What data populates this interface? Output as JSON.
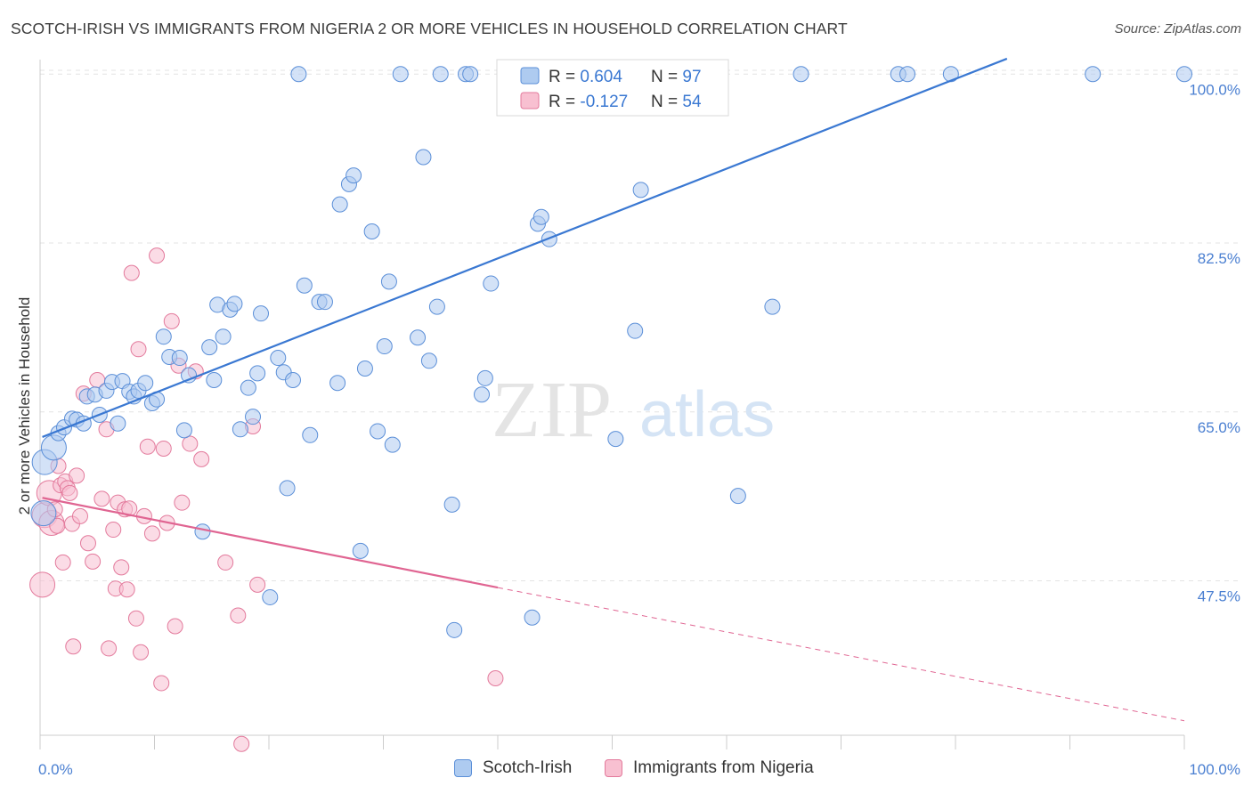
{
  "header": {
    "title": "SCOTCH-IRISH VS IMMIGRANTS FROM NIGERIA 2 OR MORE VEHICLES IN HOUSEHOLD CORRELATION CHART",
    "source": "Source: ZipAtlas.com"
  },
  "watermark": {
    "zip": "ZIP",
    "atlas": "atlas"
  },
  "colors": {
    "blue_fill": "#aecbf0",
    "blue_stroke": "#5b8fd8",
    "blue_line": "#3a78d2",
    "pink_fill": "#f8c0d1",
    "pink_stroke": "#e37a9c",
    "pink_line": "#e06592",
    "axis_text": "#4a7fd1",
    "grid": "#e3e3e3"
  },
  "legend_top": {
    "rows": [
      {
        "r_label": "R = ",
        "r_value": "0.604",
        "n_label": "N = ",
        "n_value": "97"
      },
      {
        "r_label": "R = ",
        "r_value": "-0.127",
        "n_label": "N = ",
        "n_value": "54"
      }
    ]
  },
  "legend_bottom": {
    "items": [
      {
        "label": "Scotch-Irish"
      },
      {
        "label": "Immigrants from Nigeria"
      }
    ]
  },
  "chart_data": {
    "type": "scatter",
    "title": "SCOTCH-IRISH VS IMMIGRANTS FROM NIGERIA 2 OR MORE VEHICLES IN HOUSEHOLD CORRELATION CHART",
    "xlabel": "",
    "ylabel": "2 or more Vehicles in Household",
    "xlim": [
      0,
      100
    ],
    "ylim": [
      31.5,
      101.5
    ],
    "x_tick_labels": [
      "0.0%",
      "100.0%"
    ],
    "y_ticks": [
      47.5,
      65.0,
      82.5,
      100.0
    ],
    "y_tick_labels": [
      "47.5%",
      "65.0%",
      "82.5%",
      "100.0%"
    ],
    "grid": true,
    "legend_placement": "top-center",
    "series": [
      {
        "name": "Scotch-Irish",
        "R": 0.604,
        "N": 97,
        "trend": {
          "x": [
            0.2,
            84.5
          ],
          "y": [
            62.4,
            101.6
          ]
        },
        "points": [
          [
            0.3,
            54.5
          ],
          [
            0.4,
            59.8
          ],
          [
            1.2,
            61.3
          ],
          [
            1.6,
            62.8
          ],
          [
            2.1,
            63.4
          ],
          [
            2.8,
            64.3
          ],
          [
            3.2,
            64.2
          ],
          [
            3.8,
            63.8
          ],
          [
            4.1,
            66.6
          ],
          [
            4.8,
            66.8
          ],
          [
            5.2,
            64.7
          ],
          [
            5.8,
            67.2
          ],
          [
            6.3,
            68.1
          ],
          [
            6.8,
            63.8
          ],
          [
            7.2,
            68.2
          ],
          [
            7.8,
            67.1
          ],
          [
            8.2,
            66.6
          ],
          [
            8.6,
            67.2
          ],
          [
            9.2,
            68.0
          ],
          [
            9.8,
            65.9
          ],
          [
            10.2,
            66.3
          ],
          [
            10.8,
            72.8
          ],
          [
            11.3,
            70.7
          ],
          [
            12.2,
            70.6
          ],
          [
            12.6,
            63.1
          ],
          [
            13.0,
            68.8
          ],
          [
            14.2,
            52.6
          ],
          [
            14.8,
            71.7
          ],
          [
            15.2,
            68.3
          ],
          [
            15.5,
            76.1
          ],
          [
            16.0,
            72.8
          ],
          [
            16.6,
            75.6
          ],
          [
            17.0,
            76.2
          ],
          [
            17.5,
            63.2
          ],
          [
            18.2,
            67.5
          ],
          [
            18.6,
            64.5
          ],
          [
            19.0,
            69.0
          ],
          [
            19.3,
            75.2
          ],
          [
            20.1,
            45.8
          ],
          [
            20.8,
            70.6
          ],
          [
            21.3,
            69.1
          ],
          [
            21.6,
            57.1
          ],
          [
            22.1,
            68.3
          ],
          [
            22.6,
            100.0
          ],
          [
            23.1,
            78.1
          ],
          [
            23.6,
            62.6
          ],
          [
            24.4,
            76.4
          ],
          [
            24.9,
            76.4
          ],
          [
            26.0,
            68.0
          ],
          [
            26.2,
            86.5
          ],
          [
            27.0,
            88.6
          ],
          [
            27.4,
            89.5
          ],
          [
            28.0,
            50.6
          ],
          [
            28.4,
            69.5
          ],
          [
            29.0,
            83.7
          ],
          [
            29.5,
            63.0
          ],
          [
            30.1,
            71.8
          ],
          [
            30.5,
            78.5
          ],
          [
            30.8,
            61.6
          ],
          [
            31.5,
            100.0
          ],
          [
            33.0,
            72.7
          ],
          [
            33.5,
            91.4
          ],
          [
            34.0,
            70.3
          ],
          [
            34.7,
            75.9
          ],
          [
            35.0,
            100.0
          ],
          [
            36.0,
            55.4
          ],
          [
            36.2,
            42.4
          ],
          [
            37.2,
            100.0
          ],
          [
            37.6,
            100.0
          ],
          [
            38.6,
            66.8
          ],
          [
            38.9,
            68.5
          ],
          [
            39.4,
            78.3
          ],
          [
            40.8,
            100.0
          ],
          [
            40.9,
            100.0
          ],
          [
            42.0,
            100.0
          ],
          [
            42.4,
            100.0
          ],
          [
            42.6,
            100.0
          ],
          [
            42.9,
            100.0
          ],
          [
            43.0,
            43.7
          ],
          [
            43.5,
            84.5
          ],
          [
            43.8,
            85.2
          ],
          [
            44.5,
            82.9
          ],
          [
            50.3,
            62.2
          ],
          [
            52.0,
            73.4
          ],
          [
            52.5,
            88.0
          ],
          [
            55.0,
            100.0
          ],
          [
            56.0,
            100.0
          ],
          [
            61.0,
            56.3
          ],
          [
            64.0,
            75.9
          ],
          [
            66.5,
            100.0
          ],
          [
            75.0,
            100.0
          ],
          [
            75.8,
            100.0
          ],
          [
            79.6,
            100.0
          ],
          [
            92.0,
            100.0
          ],
          [
            100.0,
            100.0
          ]
        ]
      },
      {
        "name": "Immigrants from Nigeria",
        "R": -0.127,
        "N": 54,
        "trend": {
          "x": [
            0.2,
            40.0
          ],
          "y": [
            56.1,
            46.8
          ]
        },
        "trend_extension": {
          "x": [
            40.0,
            100.0
          ],
          "y": [
            46.8,
            33.0
          ]
        },
        "points": [
          [
            0.2,
            47.1
          ],
          [
            0.4,
            54.3
          ],
          [
            0.8,
            56.6
          ],
          [
            1.0,
            53.5
          ],
          [
            1.3,
            54.9
          ],
          [
            1.5,
            53.2
          ],
          [
            1.6,
            59.4
          ],
          [
            1.8,
            57.4
          ],
          [
            2.0,
            49.4
          ],
          [
            2.2,
            57.8
          ],
          [
            2.4,
            57.1
          ],
          [
            2.6,
            56.6
          ],
          [
            2.8,
            53.4
          ],
          [
            2.9,
            40.7
          ],
          [
            3.2,
            58.4
          ],
          [
            3.5,
            54.2
          ],
          [
            3.8,
            66.9
          ],
          [
            4.2,
            51.4
          ],
          [
            4.6,
            49.5
          ],
          [
            5.0,
            68.3
          ],
          [
            5.4,
            56.0
          ],
          [
            5.8,
            63.2
          ],
          [
            6.0,
            40.5
          ],
          [
            6.4,
            52.8
          ],
          [
            6.6,
            46.7
          ],
          [
            6.8,
            55.6
          ],
          [
            7.1,
            48.9
          ],
          [
            7.4,
            54.9
          ],
          [
            7.6,
            46.6
          ],
          [
            7.8,
            55.0
          ],
          [
            8.0,
            79.4
          ],
          [
            8.4,
            43.6
          ],
          [
            8.6,
            71.5
          ],
          [
            8.8,
            40.1
          ],
          [
            9.1,
            54.2
          ],
          [
            9.4,
            61.4
          ],
          [
            9.8,
            52.4
          ],
          [
            10.2,
            81.2
          ],
          [
            10.6,
            36.9
          ],
          [
            10.8,
            61.2
          ],
          [
            11.1,
            53.5
          ],
          [
            11.5,
            74.4
          ],
          [
            11.8,
            42.8
          ],
          [
            12.1,
            69.8
          ],
          [
            12.4,
            55.6
          ],
          [
            13.1,
            61.7
          ],
          [
            13.6,
            69.2
          ],
          [
            14.1,
            60.1
          ],
          [
            16.2,
            49.4
          ],
          [
            17.3,
            43.9
          ],
          [
            17.6,
            30.6
          ],
          [
            18.6,
            63.5
          ],
          [
            19.0,
            47.1
          ],
          [
            39.8,
            37.4
          ]
        ]
      }
    ]
  }
}
